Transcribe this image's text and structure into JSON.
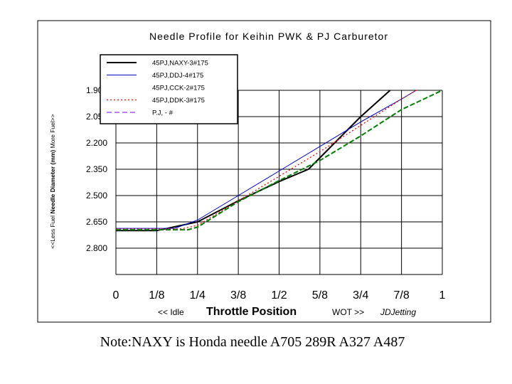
{
  "chart_data": {
    "type": "line",
    "title": "Needle Profile for Keihin PWK & PJ Carburetor",
    "xlabel": "Throttle Position",
    "x_left_note": "<< Idle",
    "x_right_note": "WOT >>",
    "credit": "JDJetting",
    "ylabel_parts": {
      "left": "<<Less Fuel ",
      "bold": "Needle Diameter (mm)",
      "right": " More Fuel>>"
    },
    "x_ticks": [
      {
        "value": 0,
        "label": "0"
      },
      {
        "value": 0.125,
        "label": "1/8"
      },
      {
        "value": 0.25,
        "label": "1/4"
      },
      {
        "value": 0.375,
        "label": "3/8"
      },
      {
        "value": 0.5,
        "label": "1/2"
      },
      {
        "value": 0.625,
        "label": "5/8"
      },
      {
        "value": 0.75,
        "label": "3/4"
      },
      {
        "value": 0.875,
        "label": "7/8"
      },
      {
        "value": 1,
        "label": "1"
      }
    ],
    "y_ticks": [
      {
        "value": 1.9,
        "label": "1.900"
      },
      {
        "value": 2.05,
        "label": "2.050"
      },
      {
        "value": 2.2,
        "label": "2.200"
      },
      {
        "value": 2.35,
        "label": "2.350"
      },
      {
        "value": 2.5,
        "label": "2.500"
      },
      {
        "value": 2.65,
        "label": "2.650"
      },
      {
        "value": 2.8,
        "label": "2.800"
      }
    ],
    "xlim": [
      0,
      1
    ],
    "ylim": [
      1.9,
      2.95
    ],
    "y_reversed": true,
    "grid": true,
    "legend_position": "top-left",
    "series": [
      {
        "name": "45PJ,NAXY-3#175",
        "color": "#000000",
        "dash": "",
        "width": 2,
        "points": [
          [
            0,
            2.7
          ],
          [
            0.125,
            2.7
          ],
          [
            0.25,
            2.65
          ],
          [
            0.375,
            2.53
          ],
          [
            0.5,
            2.42
          ],
          [
            0.59,
            2.35
          ],
          [
            0.75,
            2.05
          ],
          [
            0.84,
            1.9
          ]
        ]
      },
      {
        "name": "45PJ,DDJ-4#175",
        "color": "#0000cc",
        "dash": "",
        "width": 1,
        "points": [
          [
            0,
            2.687
          ],
          [
            0.18,
            2.687
          ],
          [
            0.25,
            2.64
          ],
          [
            0.375,
            2.5
          ],
          [
            0.5,
            2.36
          ],
          [
            0.625,
            2.22
          ],
          [
            0.75,
            2.08
          ],
          [
            0.875,
            1.95
          ],
          [
            0.92,
            1.9
          ]
        ]
      },
      {
        "name": "45PJ,CCK-2#175",
        "color": "#ffffff",
        "dash": "",
        "width": 1,
        "points": []
      },
      {
        "name": "45PJ,DDK-3#175",
        "color": "#ff0000",
        "dash": "2,3",
        "width": 1.3,
        "points": [
          [
            0,
            2.69
          ],
          [
            0.2,
            2.69
          ],
          [
            0.25,
            2.67
          ],
          [
            0.375,
            2.53
          ],
          [
            0.5,
            2.39
          ],
          [
            0.625,
            2.25
          ],
          [
            0.75,
            2.1
          ],
          [
            0.875,
            1.95
          ],
          [
            0.92,
            1.9
          ]
        ]
      },
      {
        "name": "P.J,   - #",
        "color": "#7f00ff",
        "dash": "7,4",
        "width": 1,
        "points": []
      },
      {
        "name": "",
        "color": "#008000",
        "dash": "7,3",
        "width": 2,
        "points": [
          [
            0,
            2.695
          ],
          [
            0.22,
            2.695
          ],
          [
            0.25,
            2.68
          ],
          [
            0.375,
            2.535
          ],
          [
            0.5,
            2.415
          ],
          [
            0.625,
            2.3
          ],
          [
            0.75,
            2.16
          ],
          [
            0.875,
            2.01
          ],
          [
            1,
            1.9
          ]
        ]
      }
    ]
  },
  "note": "Note:NAXY is Honda needle A705 289R A327 A487"
}
